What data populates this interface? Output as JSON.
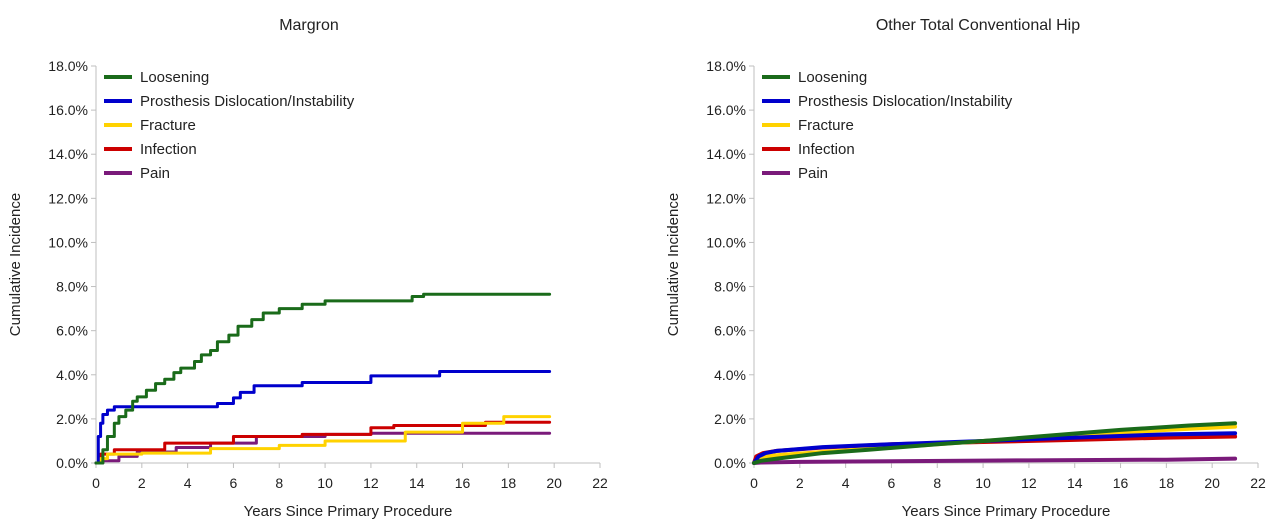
{
  "chart_data": [
    {
      "type": "line",
      "title": "Margron",
      "xlabel": "Years Since Primary Procedure",
      "ylabel": "Cumulative Incidence",
      "xlim": [
        0,
        22
      ],
      "ylim": [
        0,
        18
      ],
      "x_ticks": [
        "0",
        "2",
        "4",
        "6",
        "8",
        "10",
        "12",
        "14",
        "16",
        "18",
        "20",
        "22"
      ],
      "y_ticks": [
        "0.0%",
        "2.0%",
        "4.0%",
        "6.0%",
        "8.0%",
        "10.0%",
        "12.0%",
        "14.0%",
        "16.0%",
        "18.0%"
      ],
      "legend_position": "top-left",
      "grid": false,
      "series": [
        {
          "name": "Loosening",
          "color": "#1a6b1a",
          "step": true,
          "points": [
            [
              0,
              0
            ],
            [
              0.3,
              0.6
            ],
            [
              0.5,
              1.2
            ],
            [
              0.8,
              1.8
            ],
            [
              1.0,
              2.1
            ],
            [
              1.3,
              2.4
            ],
            [
              1.6,
              2.8
            ],
            [
              1.8,
              3.0
            ],
            [
              2.2,
              3.3
            ],
            [
              2.6,
              3.6
            ],
            [
              3.0,
              3.8
            ],
            [
              3.4,
              4.1
            ],
            [
              3.7,
              4.3
            ],
            [
              4.3,
              4.6
            ],
            [
              4.6,
              4.9
            ],
            [
              5.0,
              5.1
            ],
            [
              5.3,
              5.5
            ],
            [
              5.8,
              5.8
            ],
            [
              6.2,
              6.2
            ],
            [
              6.8,
              6.5
            ],
            [
              7.3,
              6.8
            ],
            [
              8.0,
              7.0
            ],
            [
              9.0,
              7.2
            ],
            [
              10.0,
              7.35
            ],
            [
              13.8,
              7.55
            ],
            [
              14.3,
              7.65
            ],
            [
              19.8,
              7.65
            ]
          ]
        },
        {
          "name": "Prosthesis Dislocation/Instability",
          "color": "#0000cc",
          "step": true,
          "points": [
            [
              0,
              0
            ],
            [
              0.1,
              1.2
            ],
            [
              0.2,
              1.8
            ],
            [
              0.3,
              2.2
            ],
            [
              0.5,
              2.4
            ],
            [
              0.8,
              2.55
            ],
            [
              5.3,
              2.7
            ],
            [
              6.0,
              2.95
            ],
            [
              6.3,
              3.2
            ],
            [
              6.9,
              3.5
            ],
            [
              9.0,
              3.65
            ],
            [
              12.0,
              3.95
            ],
            [
              15.0,
              4.15
            ],
            [
              19.8,
              4.15
            ]
          ]
        },
        {
          "name": "Fracture",
          "color": "#ffd200",
          "step": true,
          "points": [
            [
              0,
              0
            ],
            [
              0.2,
              0.2
            ],
            [
              0.5,
              0.4
            ],
            [
              2.0,
              0.45
            ],
            [
              5.0,
              0.65
            ],
            [
              8.0,
              0.8
            ],
            [
              10.0,
              1.0
            ],
            [
              13.5,
              1.4
            ],
            [
              16.0,
              1.8
            ],
            [
              17.8,
              2.1
            ],
            [
              19.8,
              2.1
            ]
          ]
        },
        {
          "name": "Infection",
          "color": "#cc0000",
          "step": true,
          "points": [
            [
              0,
              0
            ],
            [
              0.2,
              0.4
            ],
            [
              0.8,
              0.6
            ],
            [
              3.0,
              0.9
            ],
            [
              6.0,
              1.2
            ],
            [
              9.0,
              1.3
            ],
            [
              12.0,
              1.6
            ],
            [
              13.0,
              1.7
            ],
            [
              17.0,
              1.85
            ],
            [
              19.8,
              1.85
            ]
          ]
        },
        {
          "name": "Pain",
          "color": "#7a1a7a",
          "step": true,
          "points": [
            [
              0,
              0
            ],
            [
              0.3,
              0.1
            ],
            [
              1.0,
              0.3
            ],
            [
              1.8,
              0.5
            ],
            [
              3.5,
              0.7
            ],
            [
              5.0,
              0.9
            ],
            [
              7.0,
              1.2
            ],
            [
              10.0,
              1.3
            ],
            [
              12.0,
              1.35
            ],
            [
              19.8,
              1.35
            ]
          ]
        }
      ]
    },
    {
      "type": "line",
      "title": "Other Total Conventional Hip",
      "xlabel": "Years Since Primary Procedure",
      "ylabel": "Cumulative Incidence",
      "xlim": [
        0,
        22
      ],
      "ylim": [
        0,
        18
      ],
      "x_ticks": [
        "0",
        "2",
        "4",
        "6",
        "8",
        "10",
        "12",
        "14",
        "16",
        "18",
        "20",
        "22"
      ],
      "y_ticks": [
        "0.0%",
        "2.0%",
        "4.0%",
        "6.0%",
        "8.0%",
        "10.0%",
        "12.0%",
        "14.0%",
        "16.0%",
        "18.0%"
      ],
      "legend_position": "top-left",
      "grid": false,
      "series": [
        {
          "name": "Loosening",
          "color": "#1a6b1a",
          "step": false,
          "points": [
            [
              0,
              0
            ],
            [
              0.3,
              0.1
            ],
            [
              1,
              0.2
            ],
            [
              3,
              0.45
            ],
            [
              5,
              0.6
            ],
            [
              8,
              0.85
            ],
            [
              10,
              1.0
            ],
            [
              13,
              1.25
            ],
            [
              16,
              1.5
            ],
            [
              19,
              1.7
            ],
            [
              21,
              1.8
            ]
          ]
        },
        {
          "name": "Prosthesis Dislocation/Instability",
          "color": "#0000cc",
          "step": false,
          "points": [
            [
              0,
              0
            ],
            [
              0.2,
              0.3
            ],
            [
              0.5,
              0.45
            ],
            [
              1,
              0.55
            ],
            [
              3,
              0.72
            ],
            [
              6,
              0.85
            ],
            [
              10,
              1.0
            ],
            [
              14,
              1.15
            ],
            [
              18,
              1.3
            ],
            [
              21,
              1.35
            ]
          ]
        },
        {
          "name": "Fracture",
          "color": "#ffd200",
          "step": false,
          "points": [
            [
              0,
              0
            ],
            [
              0.2,
              0.25
            ],
            [
              1,
              0.35
            ],
            [
              3,
              0.5
            ],
            [
              6,
              0.7
            ],
            [
              10,
              1.0
            ],
            [
              14,
              1.25
            ],
            [
              18,
              1.5
            ],
            [
              21,
              1.65
            ]
          ]
        },
        {
          "name": "Infection",
          "color": "#cc0000",
          "step": false,
          "points": [
            [
              0,
              0
            ],
            [
              0.1,
              0.3
            ],
            [
              0.4,
              0.45
            ],
            [
              1,
              0.55
            ],
            [
              3,
              0.7
            ],
            [
              6,
              0.85
            ],
            [
              10,
              0.95
            ],
            [
              14,
              1.05
            ],
            [
              18,
              1.15
            ],
            [
              21,
              1.2
            ]
          ]
        },
        {
          "name": "Pain",
          "color": "#7a1a7a",
          "step": false,
          "points": [
            [
              0,
              0
            ],
            [
              0.3,
              0.02
            ],
            [
              2,
              0.05
            ],
            [
              6,
              0.08
            ],
            [
              12,
              0.12
            ],
            [
              18,
              0.15
            ],
            [
              21,
              0.2
            ]
          ]
        }
      ]
    }
  ]
}
